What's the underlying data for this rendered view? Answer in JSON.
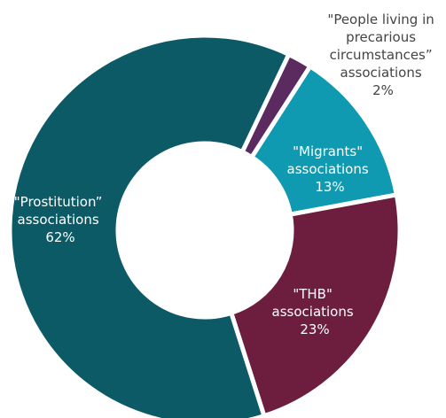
{
  "chart_data": {
    "type": "pie",
    "style": "donut",
    "categories": [
      "\"People living in precarious circumstances\" associations",
      "\"Migrants\" associations",
      "\"THB\" associations",
      "\"Prostitution” associations"
    ],
    "values": [
      2,
      13,
      23,
      62
    ],
    "unit": "%",
    "colors": [
      "#5b2a5e",
      "#0f9ab1",
      "#6d1d3e",
      "#0d5a67"
    ],
    "slices": [
      {
        "name": "people",
        "label_lines": [
          "\"People living in",
          "precarious",
          "circumstances”",
          "associations"
        ],
        "value": 2,
        "value_label": "2%",
        "color": "#5b2a5e"
      },
      {
        "name": "migrants",
        "label_lines": [
          "\"Migrants\"",
          "associations"
        ],
        "value": 13,
        "value_label": "13%",
        "color": "#0f9ab1"
      },
      {
        "name": "thb",
        "label_lines": [
          "\"THB\"",
          "associations"
        ],
        "value": 23,
        "value_label": "23%",
        "color": "#6d1d3e"
      },
      {
        "name": "prostitution",
        "label_lines": [
          "\"Prostitution”",
          "associations"
        ],
        "value": 62,
        "value_label": "62%",
        "color": "#0d5a67"
      }
    ]
  }
}
